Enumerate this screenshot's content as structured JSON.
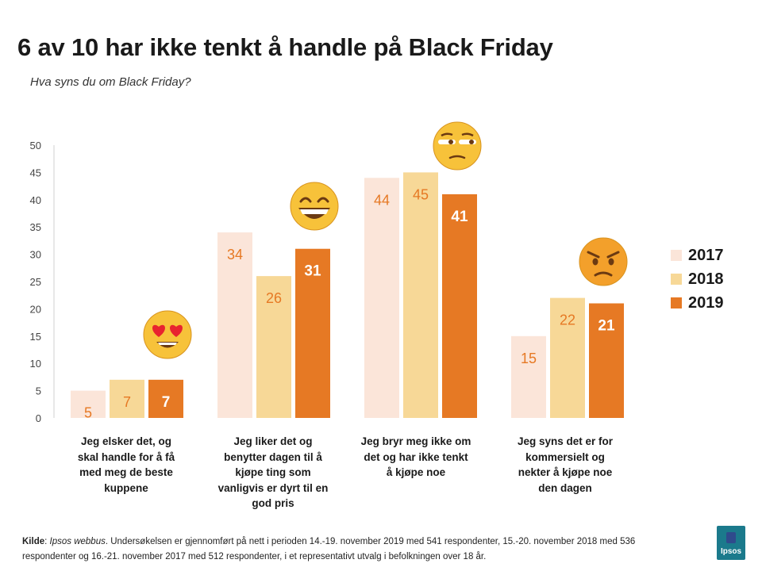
{
  "title": "6 av 10 har ikke tenkt å handle på Black Friday",
  "subtitle": "Hva syns du om Black Friday?",
  "chart_data": {
    "type": "bar",
    "title": "6 av 10 har ikke tenkt å handle på Black Friday",
    "subtitle": "Hva syns du om Black Friday?",
    "categories": [
      "Jeg elsker det, og skal handle for å få med meg de beste kuppene",
      "Jeg liker det og benytter dagen til å kjøpe ting som vanligvis er dyrt til en god pris",
      "Jeg bryr meg ikke om det og har ikke tenkt å kjøpe noe",
      "Jeg syns det er for kommersielt og nekter å kjøpe noe den dagen"
    ],
    "series": [
      {
        "name": "2017",
        "values": [
          5,
          34,
          44,
          15
        ],
        "color": "#fbe5d9"
      },
      {
        "name": "2018",
        "values": [
          7,
          26,
          45,
          22
        ],
        "color": "#f7d897"
      },
      {
        "name": "2019",
        "values": [
          7,
          31,
          41,
          21
        ],
        "color": "#e67924"
      }
    ],
    "ylim": [
      0,
      50
    ],
    "yticks": [
      "0",
      "5",
      "10",
      "15",
      "20",
      "25",
      "30",
      "35",
      "40",
      "45",
      "50"
    ],
    "xlabel": "",
    "ylabel": "",
    "grid": false,
    "legend_position": "right",
    "emojis": [
      "heart-eyes-emoji-icon",
      "grinning-emoji-icon",
      "unamused-emoji-icon",
      "angry-emoji-icon"
    ]
  },
  "footnote": {
    "label": "Kilde",
    "source": "Ipsos webbus",
    "text": ". Undersøkelsen er gjennomført på nett i perioden 14.-19. november 2019 med 541 respondenter,    15.-20. november 2018 med 536 respondenter og 16.-21. november 2017 med 512 respondenter, i et representativt utvalg i befolkningen over 18 år."
  },
  "logo": {
    "text": "Ipsos",
    "color": "#1b7a8c"
  }
}
